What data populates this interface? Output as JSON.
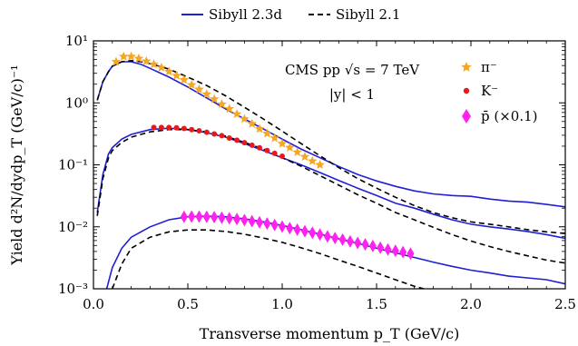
{
  "chart_data": {
    "type": "line",
    "xlabel": "Transverse momentum p_T (GeV/c)",
    "ylabel": "Yield d²N/dydp_T (GeV/c)⁻¹",
    "xlim": [
      0,
      2.5
    ],
    "ylim": [
      0.001,
      10
    ],
    "yscale": "log",
    "x_ticks": [
      0,
      0.5,
      1.0,
      1.5,
      2.0,
      2.5
    ],
    "x_tick_labels": [
      "0.0",
      "0.5",
      "1.0",
      "1.5",
      "2.0",
      "2.5"
    ],
    "y_ticks": [
      0.001,
      0.01,
      0.1,
      1,
      10
    ],
    "y_tick_labels": [
      "10⁻³",
      "10⁻²",
      "10⁻¹",
      "10⁰",
      "10¹"
    ],
    "legend_top": [
      {
        "name": "Sibyll 2.3d",
        "color": "#1f1fd6",
        "style": "solid"
      },
      {
        "name": "Sibyll 2.1",
        "color": "#000000",
        "style": "dashed"
      }
    ],
    "legend_right": [
      {
        "name": "π⁻",
        "color": "#f5a623",
        "marker": "star"
      },
      {
        "name": "K⁻",
        "color": "#e8191c",
        "marker": "circle"
      },
      {
        "name": "p̄ (×0.1)",
        "color": "#ff22ee",
        "marker": "diamond"
      }
    ],
    "annotation": {
      "line1": "CMS pp √s = 7 TeV",
      "line2": "|y| < 1"
    },
    "series": [
      {
        "name": "Sibyll 2.3d",
        "particle": "pion",
        "style": "solid",
        "color": "#1f1fd6",
        "x": [
          0.02,
          0.05,
          0.08,
          0.1,
          0.15,
          0.2,
          0.25,
          0.3,
          0.4,
          0.5,
          0.6,
          0.7,
          0.8,
          0.9,
          1.0,
          1.1,
          1.2,
          1.3,
          1.4,
          1.5,
          1.6,
          1.7,
          1.8,
          1.9,
          2.0,
          2.1,
          2.2,
          2.3,
          2.4,
          2.5
        ],
        "y": [
          1.1,
          2.2,
          3.2,
          3.9,
          4.6,
          4.6,
          4.2,
          3.6,
          2.6,
          1.8,
          1.2,
          0.8,
          0.55,
          0.38,
          0.26,
          0.18,
          0.13,
          0.094,
          0.07,
          0.055,
          0.045,
          0.038,
          0.034,
          0.032,
          0.031,
          0.028,
          0.026,
          0.025,
          0.023,
          0.021
        ]
      },
      {
        "name": "Sibyll 2.1",
        "particle": "pion",
        "style": "dashed",
        "color": "#000000",
        "x": [
          0.02,
          0.05,
          0.08,
          0.1,
          0.15,
          0.2,
          0.25,
          0.3,
          0.4,
          0.5,
          0.6,
          0.7,
          0.8,
          0.9,
          1.0,
          1.1,
          1.2,
          1.3,
          1.4,
          1.5,
          1.6,
          1.7,
          1.8,
          1.9,
          2.0,
          2.1,
          2.2,
          2.3,
          2.4,
          2.5
        ],
        "y": [
          1.1,
          2.2,
          3.2,
          3.9,
          4.6,
          4.8,
          4.6,
          4.3,
          3.5,
          2.6,
          1.9,
          1.3,
          0.85,
          0.55,
          0.35,
          0.22,
          0.14,
          0.09,
          0.06,
          0.042,
          0.03,
          0.022,
          0.017,
          0.014,
          0.012,
          0.011,
          0.01,
          0.009,
          0.0083,
          0.0078
        ]
      },
      {
        "name": "Sibyll 2.3d",
        "particle": "kaon",
        "style": "solid",
        "color": "#1f1fd6",
        "x": [
          0.02,
          0.05,
          0.08,
          0.1,
          0.15,
          0.2,
          0.3,
          0.4,
          0.5,
          0.6,
          0.7,
          0.8,
          0.9,
          1.0,
          1.1,
          1.2,
          1.3,
          1.4,
          1.5,
          1.6,
          1.7,
          1.8,
          1.9,
          2.0,
          2.1,
          2.2,
          2.3,
          2.4,
          2.5
        ],
        "y": [
          0.017,
          0.07,
          0.15,
          0.19,
          0.26,
          0.31,
          0.37,
          0.39,
          0.37,
          0.33,
          0.28,
          0.22,
          0.17,
          0.13,
          0.1,
          0.075,
          0.056,
          0.042,
          0.032,
          0.024,
          0.02,
          0.016,
          0.013,
          0.011,
          0.01,
          0.0092,
          0.0084,
          0.0075,
          0.0065
        ]
      },
      {
        "name": "Sibyll 2.1",
        "particle": "kaon",
        "style": "dashed",
        "color": "#000000",
        "x": [
          0.02,
          0.05,
          0.08,
          0.1,
          0.15,
          0.2,
          0.3,
          0.4,
          0.5,
          0.6,
          0.7,
          0.8,
          0.9,
          1.0,
          1.1,
          1.2,
          1.3,
          1.4,
          1.5,
          1.6,
          1.7,
          1.8,
          1.9,
          2.0,
          2.1,
          2.2,
          2.3,
          2.4,
          2.5
        ],
        "y": [
          0.015,
          0.06,
          0.13,
          0.17,
          0.23,
          0.28,
          0.34,
          0.37,
          0.37,
          0.34,
          0.29,
          0.23,
          0.18,
          0.13,
          0.095,
          0.067,
          0.047,
          0.033,
          0.024,
          0.017,
          0.013,
          0.0098,
          0.0075,
          0.0059,
          0.0048,
          0.004,
          0.0034,
          0.0029,
          0.0026
        ]
      },
      {
        "name": "Sibyll 2.3d",
        "particle": "antiproton",
        "style": "solid",
        "color": "#1f1fd6",
        "x": [
          0.07,
          0.1,
          0.15,
          0.2,
          0.3,
          0.4,
          0.5,
          0.6,
          0.7,
          0.8,
          0.9,
          1.0,
          1.1,
          1.2,
          1.3,
          1.4,
          1.5,
          1.6,
          1.7,
          1.8,
          1.9,
          2.0,
          2.1,
          2.2,
          2.3,
          2.4,
          2.5
        ],
        "y": [
          0.001,
          0.0022,
          0.0045,
          0.0068,
          0.01,
          0.013,
          0.0145,
          0.0148,
          0.0145,
          0.0135,
          0.012,
          0.0105,
          0.009,
          0.0076,
          0.0064,
          0.0054,
          0.0045,
          0.0038,
          0.0032,
          0.0027,
          0.0023,
          0.002,
          0.0018,
          0.0016,
          0.0015,
          0.0014,
          0.0012
        ]
      },
      {
        "name": "Sibyll 2.1",
        "particle": "antiproton",
        "style": "dashed",
        "color": "#000000",
        "x": [
          0.1,
          0.15,
          0.2,
          0.3,
          0.4,
          0.5,
          0.6,
          0.7,
          0.8,
          0.9,
          1.0,
          1.1,
          1.2,
          1.3,
          1.4,
          1.5,
          1.6,
          1.7,
          1.75
        ],
        "y": [
          0.001,
          0.0025,
          0.0045,
          0.0068,
          0.0083,
          0.0089,
          0.0089,
          0.0084,
          0.0076,
          0.0066,
          0.0056,
          0.0046,
          0.0037,
          0.0029,
          0.0023,
          0.0018,
          0.0014,
          0.0011,
          0.001
        ]
      },
      {
        "name": "π⁻",
        "particle": "pion",
        "kind": "data",
        "color": "#f5a623",
        "x": [
          0.12,
          0.16,
          0.2,
          0.24,
          0.28,
          0.32,
          0.36,
          0.4,
          0.44,
          0.48,
          0.52,
          0.56,
          0.6,
          0.64,
          0.68,
          0.72,
          0.76,
          0.8,
          0.84,
          0.88,
          0.92,
          0.96,
          1.0,
          1.04,
          1.08,
          1.12,
          1.16,
          1.2
        ],
        "y": [
          4.6,
          5.6,
          5.6,
          5.2,
          4.7,
          4.2,
          3.7,
          3.2,
          2.75,
          2.35,
          1.95,
          1.65,
          1.38,
          1.15,
          0.95,
          0.8,
          0.66,
          0.55,
          0.46,
          0.38,
          0.32,
          0.27,
          0.22,
          0.19,
          0.16,
          0.135,
          0.115,
          0.1
        ]
      },
      {
        "name": "K⁻",
        "particle": "kaon",
        "kind": "data",
        "color": "#e8191c",
        "x": [
          0.32,
          0.36,
          0.4,
          0.44,
          0.48,
          0.52,
          0.56,
          0.6,
          0.64,
          0.68,
          0.72,
          0.76,
          0.8,
          0.84,
          0.88,
          0.92,
          0.96,
          1.0
        ],
        "y": [
          0.4,
          0.4,
          0.4,
          0.395,
          0.385,
          0.37,
          0.355,
          0.335,
          0.315,
          0.295,
          0.27,
          0.25,
          0.228,
          0.207,
          0.188,
          0.17,
          0.153,
          0.138
        ]
      },
      {
        "name": "p̄ (×0.1)",
        "particle": "antiproton",
        "kind": "data",
        "color": "#ff22ee",
        "x": [
          0.48,
          0.52,
          0.56,
          0.6,
          0.64,
          0.68,
          0.72,
          0.76,
          0.8,
          0.84,
          0.88,
          0.92,
          0.96,
          1.0,
          1.04,
          1.08,
          1.12,
          1.16,
          1.2,
          1.24,
          1.28,
          1.32,
          1.36,
          1.4,
          1.44,
          1.48,
          1.52,
          1.56,
          1.6,
          1.64,
          1.68
        ],
        "y": [
          0.0145,
          0.0146,
          0.0146,
          0.0145,
          0.0143,
          0.014,
          0.0137,
          0.0133,
          0.0128,
          0.0123,
          0.0118,
          0.0113,
          0.0107,
          0.0101,
          0.0095,
          0.009,
          0.0085,
          0.008,
          0.0075,
          0.007,
          0.0066,
          0.0062,
          0.0058,
          0.0055,
          0.0052,
          0.0049,
          0.0046,
          0.0043,
          0.0041,
          0.0039,
          0.0037
        ]
      }
    ]
  }
}
